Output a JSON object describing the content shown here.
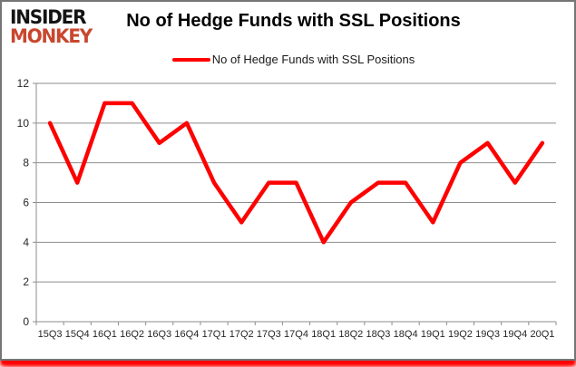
{
  "header": {
    "logo_line1": "INSIDER",
    "logo_line2": "MONKEY",
    "title": "No of Hedge Funds with SSL Positions"
  },
  "legend": {
    "label": "No of Hedge Funds with SSL Positions",
    "color": "#ff0000"
  },
  "chart_data": {
    "type": "line",
    "title": "No of Hedge Funds with SSL Positions",
    "series_name": "No of Hedge Funds with SSL Positions",
    "categories": [
      "15Q3",
      "15Q4",
      "16Q1",
      "16Q2",
      "16Q3",
      "16Q4",
      "17Q1",
      "17Q2",
      "17Q3",
      "17Q4",
      "18Q1",
      "18Q2",
      "18Q3",
      "18Q4",
      "19Q1",
      "19Q2",
      "19Q3",
      "19Q4",
      "20Q1"
    ],
    "values": [
      10,
      7,
      11,
      11,
      9,
      10,
      7,
      5,
      7,
      7,
      4,
      6,
      7,
      7,
      5,
      8,
      9,
      7,
      9
    ],
    "xlabel": "",
    "ylabel": "",
    "ylim": [
      0,
      12
    ],
    "ytick_step": 2,
    "grid": true,
    "legend_position": "top-center",
    "line_color": "#ff0000",
    "gridline_color": "#8e8e8e"
  },
  "colors": {
    "series_red": "#ff0000",
    "logo_black": "#141414",
    "logo_red": "#c8472e",
    "frame_border": "#757575",
    "frame_glow": "#ff0000"
  }
}
